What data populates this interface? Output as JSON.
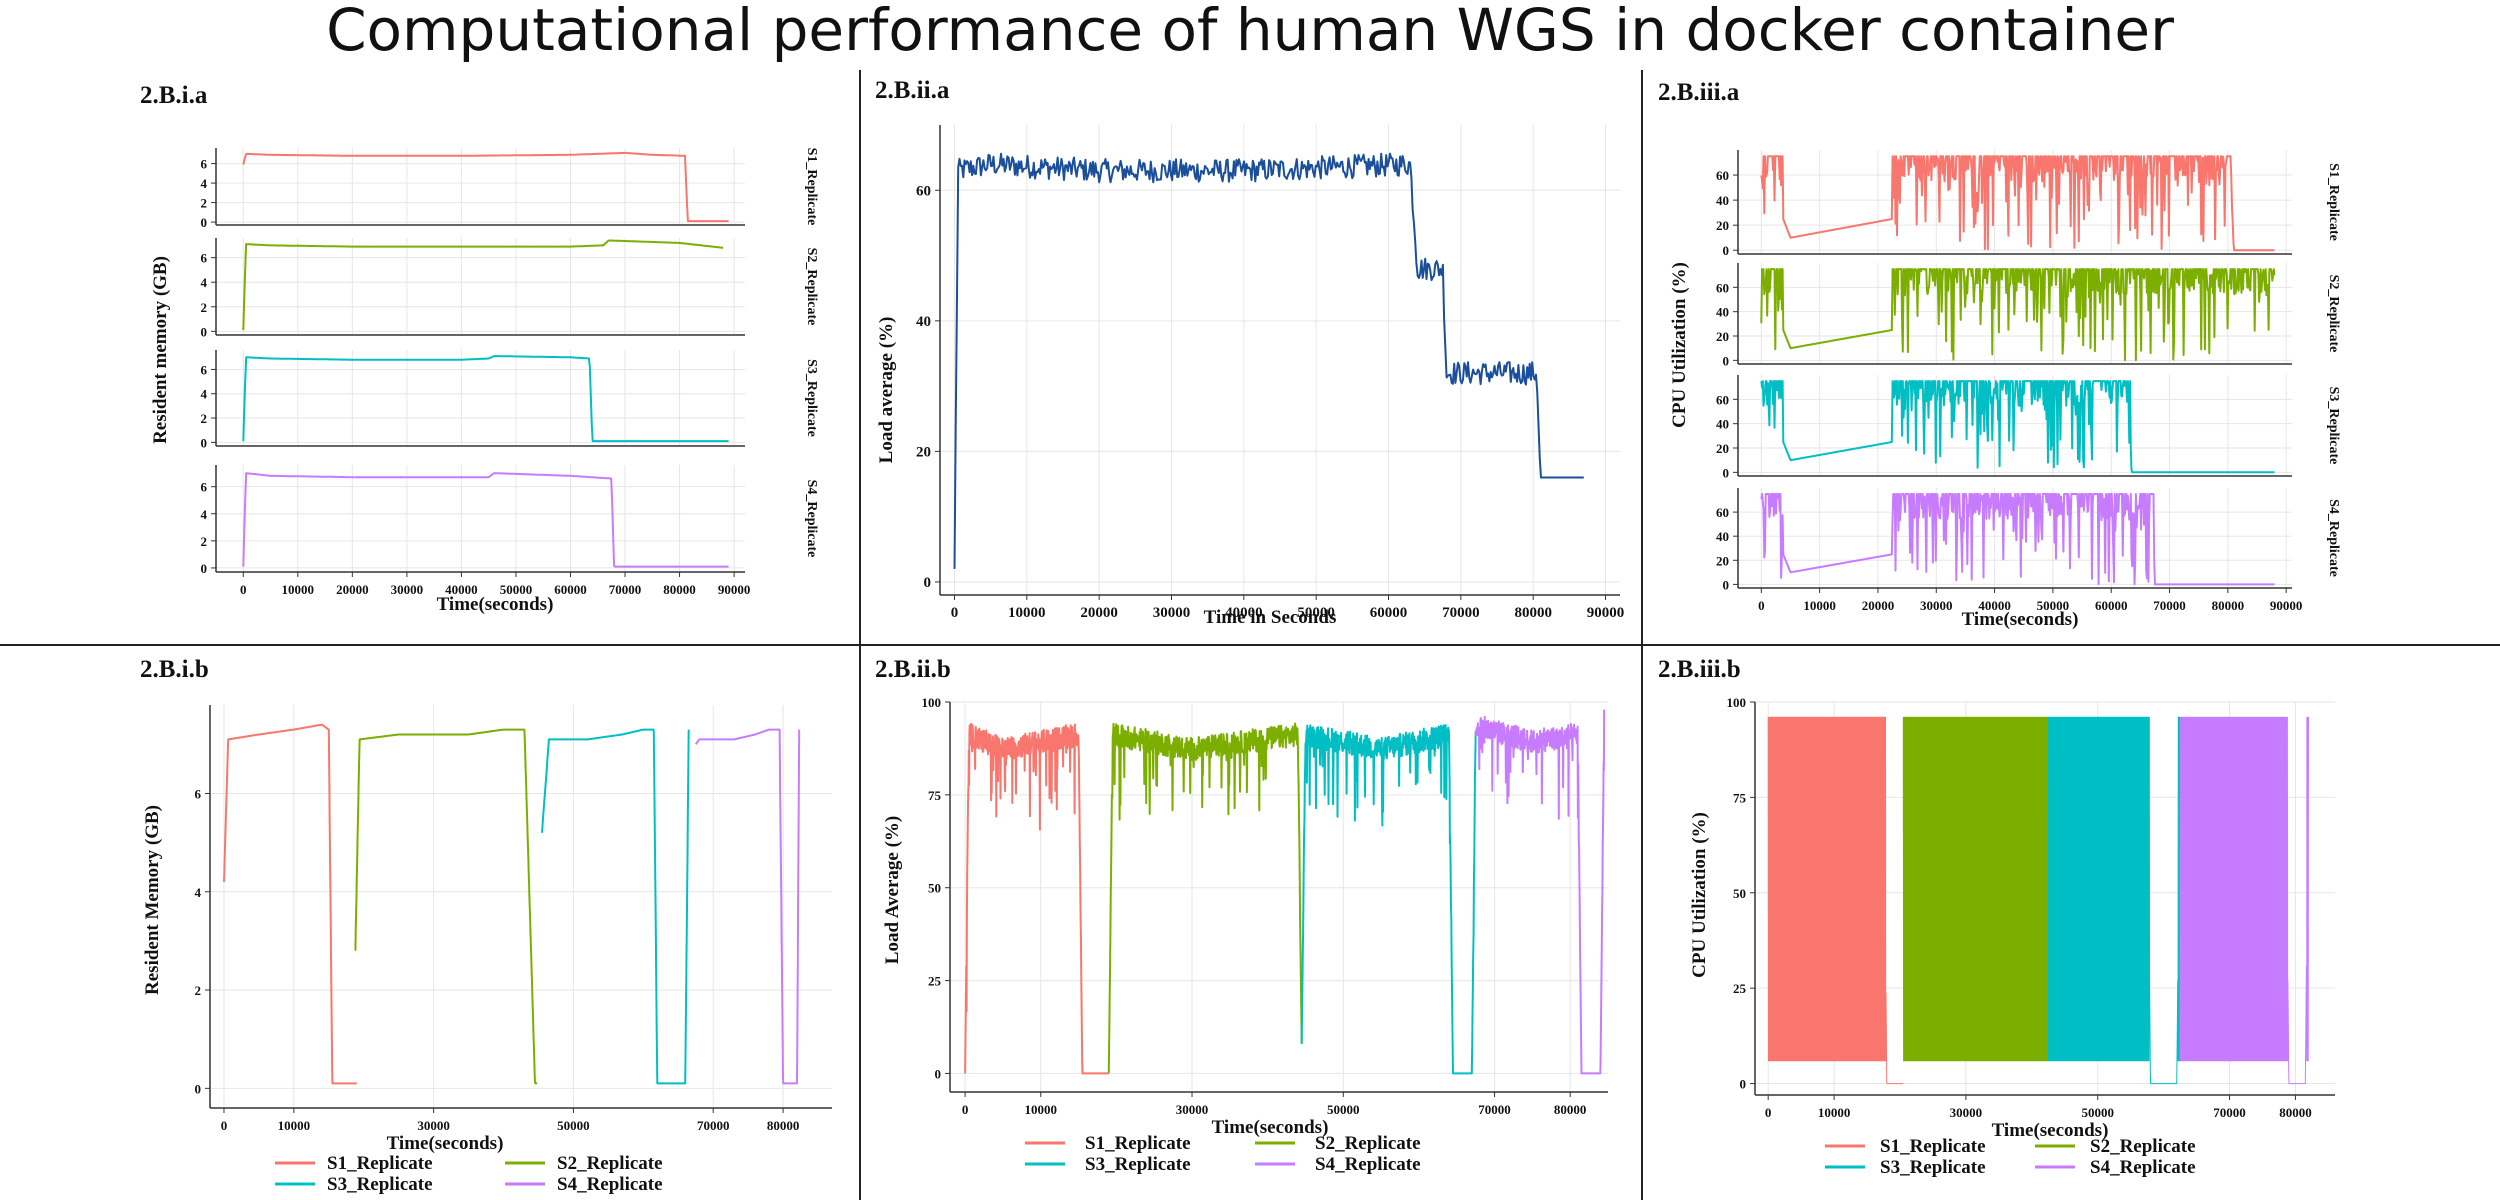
{
  "title": "Computational performance of human WGS in docker container",
  "colors": {
    "S1": "#F8766D",
    "S2": "#7CAE00",
    "S3": "#00BFC4",
    "S4": "#C77CFF",
    "single": "#1B4F9C",
    "frame": "#222222"
  },
  "chart_data": [
    {
      "id": "bia",
      "panel_label": "2.B.i.a",
      "type": "line",
      "faceted": true,
      "xlabel": "Time(seconds)",
      "ylabel": "Resident memory (GB)",
      "xlim": [
        -5000,
        92000
      ],
      "ylim": [
        -0.3,
        7.6
      ],
      "xticks": [
        0,
        10000,
        20000,
        30000,
        40000,
        50000,
        60000,
        70000,
        80000,
        90000
      ],
      "yticks": [
        0,
        2,
        4,
        6
      ],
      "series": [
        {
          "name": "S1_Replicate",
          "x": [
            0,
            500,
            5000,
            20000,
            40000,
            60000,
            70000,
            75000,
            81000,
            81500,
            89000
          ],
          "y": [
            5.9,
            7.0,
            6.9,
            6.8,
            6.8,
            6.9,
            7.1,
            6.9,
            6.8,
            0.1,
            0.1
          ]
        },
        {
          "name": "S2_Replicate",
          "x": [
            0,
            500,
            5000,
            20000,
            40000,
            60000,
            66000,
            67000,
            80000,
            88000
          ],
          "y": [
            0.1,
            7.1,
            7.0,
            6.9,
            6.9,
            6.9,
            7.0,
            7.4,
            7.2,
            6.8
          ]
        },
        {
          "name": "S3_Replicate",
          "x": [
            0,
            500,
            5000,
            20000,
            40000,
            45000,
            46000,
            60000,
            63500,
            64000,
            89000
          ],
          "y": [
            0.1,
            7.0,
            6.9,
            6.8,
            6.8,
            6.9,
            7.1,
            7.0,
            6.9,
            0.1,
            0.1
          ]
        },
        {
          "name": "S4_Replicate",
          "x": [
            0,
            500,
            5000,
            20000,
            40000,
            45000,
            46000,
            60000,
            67500,
            68000,
            89000
          ],
          "y": [
            0.1,
            7.0,
            6.8,
            6.7,
            6.7,
            6.7,
            7.0,
            6.8,
            6.6,
            0.1,
            0.1
          ]
        }
      ]
    },
    {
      "id": "biia",
      "panel_label": "2.B.ii.a",
      "type": "line",
      "faceted": false,
      "xlabel": "Time in Seconds",
      "ylabel": "Load average (%)",
      "xlim": [
        -2000,
        92000
      ],
      "ylim": [
        -2,
        70
      ],
      "xticks": [
        0,
        10000,
        20000,
        30000,
        40000,
        50000,
        60000,
        70000,
        80000,
        90000
      ],
      "yticks": [
        0,
        20,
        40,
        60
      ],
      "series": [
        {
          "name": "",
          "x": [
            0,
            500,
            5000,
            20000,
            40000,
            63000,
            64000,
            67500,
            68000,
            80500,
            81000,
            87000
          ],
          "y": [
            2,
            63,
            64,
            63,
            63,
            64,
            48,
            48,
            32,
            32,
            16,
            16
          ]
        }
      ]
    },
    {
      "id": "biiia",
      "panel_label": "2.B.iii.a",
      "type": "line",
      "faceted": true,
      "xlabel": "Time(seconds)",
      "ylabel": "CPU Utilization (%)",
      "xlim": [
        -4000,
        91000
      ],
      "ylim": [
        -3,
        80
      ],
      "xticks": [
        0,
        10000,
        20000,
        30000,
        40000,
        50000,
        60000,
        70000,
        80000,
        90000
      ],
      "yticks": [
        0,
        20,
        40,
        60
      ],
      "series": [
        {
          "name": "S1_Replicate",
          "x": [
            0,
            5000,
            40000,
            80500,
            81000,
            88000
          ],
          "y": [
            70,
            10,
            40,
            70,
            0,
            0
          ]
        },
        {
          "name": "S2_Replicate",
          "x": [
            0,
            5000,
            40000,
            88000
          ],
          "y": [
            70,
            10,
            40,
            70
          ]
        },
        {
          "name": "S3_Replicate",
          "x": [
            0,
            5000,
            40000,
            63000,
            63500,
            88000
          ],
          "y": [
            70,
            10,
            40,
            70,
            0,
            0
          ]
        },
        {
          "name": "S4_Replicate",
          "x": [
            0,
            5000,
            40000,
            67000,
            67500,
            88000
          ],
          "y": [
            70,
            10,
            40,
            70,
            0,
            0
          ]
        }
      ]
    },
    {
      "id": "bib",
      "panel_label": "2.B.i.b",
      "type": "line",
      "faceted": false,
      "xlabel": "Time(seconds)",
      "ylabel": "Resident Memory (GB)",
      "xlim": [
        -2000,
        87000
      ],
      "ylim": [
        -0.4,
        7.8
      ],
      "xticks": [
        0,
        10000,
        30000,
        50000,
        70000,
        80000
      ],
      "yticks": [
        0,
        2,
        4,
        6
      ],
      "series": [
        {
          "name": "S1_Replicate",
          "x": [
            0,
            600,
            5000,
            10000,
            14000,
            15000,
            15500,
            19000
          ],
          "y": [
            4.2,
            7.1,
            7.2,
            7.3,
            7.4,
            7.3,
            0.1,
            0.1
          ]
        },
        {
          "name": "S2_Replicate",
          "x": [
            18800,
            19400,
            25000,
            35000,
            40000,
            43000,
            44500,
            44800
          ],
          "y": [
            2.8,
            7.1,
            7.2,
            7.2,
            7.3,
            7.3,
            0.1,
            0.1
          ]
        },
        {
          "name": "S3_Replicate",
          "x": [
            45500,
            46500,
            52000,
            57000,
            60000,
            61500,
            62000,
            66000,
            66500
          ],
          "y": [
            5.2,
            7.1,
            7.1,
            7.2,
            7.3,
            7.3,
            0.1,
            0.1,
            7.3
          ]
        },
        {
          "name": "S4_Replicate",
          "x": [
            67500,
            68000,
            73000,
            76000,
            78000,
            79500,
            80000,
            82000,
            82300
          ],
          "y": [
            7.0,
            7.1,
            7.1,
            7.2,
            7.3,
            7.3,
            0.1,
            0.1,
            7.3
          ]
        }
      ]
    },
    {
      "id": "biib",
      "panel_label": "2.B.ii.b",
      "type": "line",
      "faceted": false,
      "xlabel": "Time(seconds)",
      "ylabel": "Load Average (%)",
      "xlim": [
        -2000,
        85000
      ],
      "ylim": [
        -5,
        100
      ],
      "xticks": [
        0,
        10000,
        30000,
        50000,
        70000,
        80000
      ],
      "yticks": [
        0,
        25,
        50,
        75,
        100
      ],
      "series": [
        {
          "name": "S1_Replicate",
          "x": [
            0,
            500,
            5000,
            15000,
            15500,
            19000
          ],
          "y": [
            0,
            90,
            86,
            90,
            0,
            0
          ]
        },
        {
          "name": "S2_Replicate",
          "x": [
            19000,
            19500,
            30000,
            44000,
            44500
          ],
          "y": [
            0,
            90,
            86,
            90,
            8
          ]
        },
        {
          "name": "S3_Replicate",
          "x": [
            44500,
            45000,
            55000,
            64000,
            64500,
            67000,
            67500
          ],
          "y": [
            8,
            90,
            86,
            90,
            0,
            0,
            92
          ]
        },
        {
          "name": "S4_Replicate",
          "x": [
            67500,
            68000,
            75000,
            81000,
            81500,
            84000,
            84500
          ],
          "y": [
            92,
            92,
            88,
            90,
            0,
            0,
            96
          ]
        }
      ]
    },
    {
      "id": "biiib",
      "panel_label": "2.B.iii.b",
      "type": "line",
      "faceted": false,
      "xlabel": "Time(seconds)",
      "ylabel": "CPU Utilization (%)",
      "xlim": [
        -2000,
        86000
      ],
      "ylim": [
        -3,
        100
      ],
      "xticks": [
        0,
        10000,
        30000,
        50000,
        70000,
        80000
      ],
      "yticks": [
        0,
        25,
        50,
        75,
        100
      ],
      "series": [
        {
          "name": "S1_Replicate",
          "x": [
            0,
            17500,
            18000,
            20500
          ],
          "y": [
            96,
            96,
            0,
            0
          ]
        },
        {
          "name": "S2_Replicate",
          "x": [
            20500,
            42500
          ],
          "y": [
            96,
            96
          ]
        },
        {
          "name": "S3_Replicate",
          "x": [
            42500,
            57500,
            58000,
            62000,
            62500
          ],
          "y": [
            96,
            96,
            0,
            0,
            96
          ]
        },
        {
          "name": "S4_Replicate",
          "x": [
            62500,
            78500,
            79000,
            81500,
            82000
          ],
          "y": [
            96,
            96,
            0,
            0,
            96
          ]
        }
      ]
    }
  ],
  "legend": [
    "S1_Replicate",
    "S2_Replicate",
    "S3_Replicate",
    "S4_Replicate"
  ]
}
